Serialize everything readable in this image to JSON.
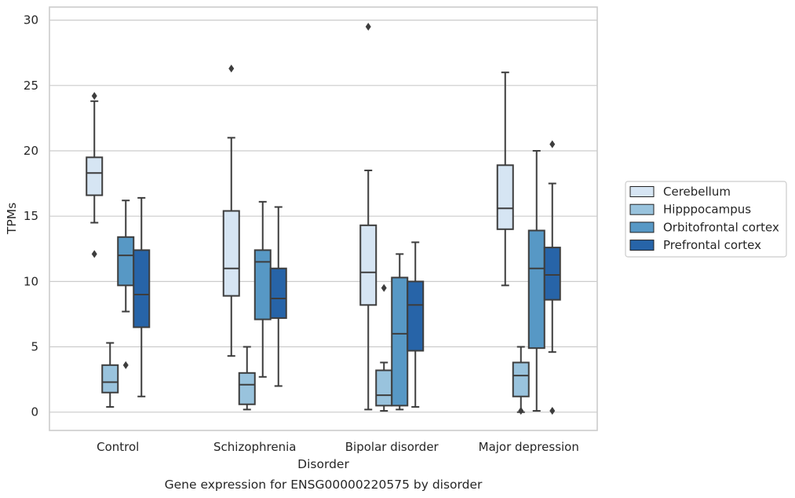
{
  "chart_data": {
    "type": "box",
    "title": "",
    "caption": "Gene expression for ENSG00000220575 by disorder",
    "xlabel": "Disorder",
    "ylabel": "TPMs",
    "ylim": [
      -1.4,
      31
    ],
    "yticks": [
      0,
      5,
      10,
      15,
      20,
      25,
      30
    ],
    "grid": "horizontal",
    "legend_position": "right",
    "categories": [
      "Control",
      "Schizophrenia",
      "Bipolar disorder",
      "Major depression"
    ],
    "series": [
      {
        "name": "Cerebellum",
        "color": "#d6e5f3",
        "boxes": [
          {
            "whislo": 14.5,
            "q1": 16.6,
            "med": 18.3,
            "q3": 19.5,
            "whishi": 23.8,
            "fliers": [
              24.2,
              12.1
            ]
          },
          {
            "whislo": 4.3,
            "q1": 8.9,
            "med": 11.0,
            "q3": 15.4,
            "whishi": 21.0,
            "fliers": [
              26.3
            ]
          },
          {
            "whislo": 0.2,
            "q1": 8.2,
            "med": 10.7,
            "q3": 14.3,
            "whishi": 18.5,
            "fliers": [
              29.5
            ]
          },
          {
            "whislo": 9.7,
            "q1": 14.0,
            "med": 15.6,
            "q3": 18.9,
            "whishi": 26.0,
            "fliers": []
          }
        ]
      },
      {
        "name": "Hipppocampus",
        "color": "#99c3dd",
        "boxes": [
          {
            "whislo": 0.4,
            "q1": 1.5,
            "med": 2.3,
            "q3": 3.6,
            "whishi": 5.3,
            "fliers": []
          },
          {
            "whislo": 0.2,
            "q1": 0.6,
            "med": 2.1,
            "q3": 3.0,
            "whishi": 5.0,
            "fliers": []
          },
          {
            "whislo": 0.1,
            "q1": 0.5,
            "med": 1.3,
            "q3": 3.2,
            "whishi": 3.8,
            "fliers": [
              9.5
            ]
          },
          {
            "whislo": 0.0,
            "q1": 1.2,
            "med": 2.8,
            "q3": 3.8,
            "whishi": 5.0,
            "fliers": [
              0.1
            ]
          }
        ]
      },
      {
        "name": "Orbitofrontal cortex",
        "color": "#5798c5",
        "boxes": [
          {
            "whislo": 7.7,
            "q1": 9.7,
            "med": 12.0,
            "q3": 13.4,
            "whishi": 16.2,
            "fliers": [
              3.6
            ]
          },
          {
            "whislo": 2.7,
            "q1": 7.1,
            "med": 11.5,
            "q3": 12.4,
            "whishi": 16.1,
            "fliers": []
          },
          {
            "whislo": 0.2,
            "q1": 0.5,
            "med": 6.0,
            "q3": 10.3,
            "whishi": 12.1,
            "fliers": []
          },
          {
            "whislo": 0.1,
            "q1": 4.9,
            "med": 11.0,
            "q3": 13.9,
            "whishi": 20.0,
            "fliers": []
          }
        ]
      },
      {
        "name": "Prefrontal cortex",
        "color": "#2764a8",
        "boxes": [
          {
            "whislo": 1.2,
            "q1": 6.5,
            "med": 9.0,
            "q3": 12.4,
            "whishi": 16.4,
            "fliers": []
          },
          {
            "whislo": 2.0,
            "q1": 7.2,
            "med": 8.7,
            "q3": 11.0,
            "whishi": 15.7,
            "fliers": []
          },
          {
            "whislo": 0.4,
            "q1": 4.7,
            "med": 8.2,
            "q3": 10.0,
            "whishi": 13.0,
            "fliers": []
          },
          {
            "whislo": 4.6,
            "q1": 8.6,
            "med": 10.5,
            "q3": 12.6,
            "whishi": 17.5,
            "fliers": [
              20.5,
              0.1
            ]
          }
        ]
      }
    ]
  }
}
